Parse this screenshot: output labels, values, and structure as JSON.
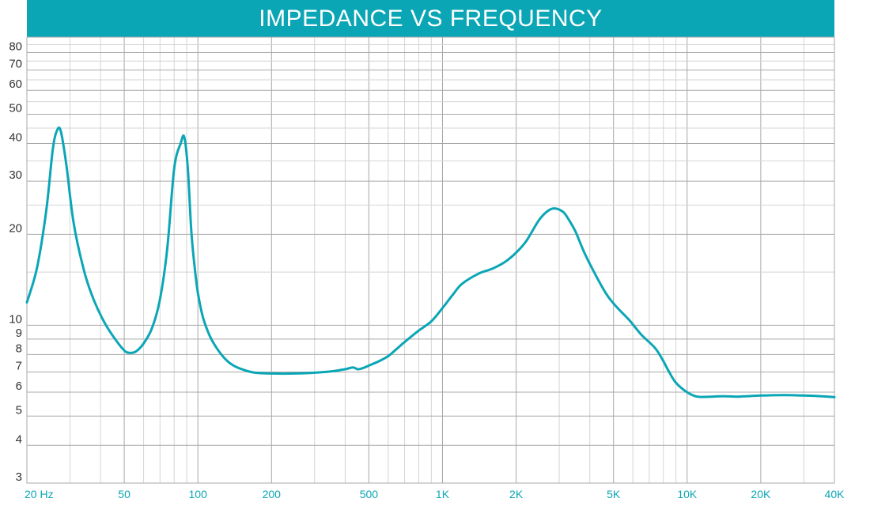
{
  "chart_data": {
    "type": "line",
    "title": "IMPEDANCE VS FREQUENCY",
    "xlabel": "",
    "ylabel": "",
    "x_scale": "log",
    "y_scale": "log",
    "xlim": [
      20,
      40000
    ],
    "ylim": [
      3,
      90
    ],
    "grid": true,
    "line_color": "#0ba6b6",
    "title_bar_color": "#0ba6b6",
    "x_ticks": [
      {
        "value": 20,
        "label": "20 Hz"
      },
      {
        "value": 50,
        "label": "50"
      },
      {
        "value": 100,
        "label": "100"
      },
      {
        "value": 200,
        "label": "200"
      },
      {
        "value": 500,
        "label": "500"
      },
      {
        "value": 1000,
        "label": "1K"
      },
      {
        "value": 2000,
        "label": "2K"
      },
      {
        "value": 5000,
        "label": "5K"
      },
      {
        "value": 10000,
        "label": "10K"
      },
      {
        "value": 20000,
        "label": "20K"
      },
      {
        "value": 40000,
        "label": "40K"
      }
    ],
    "y_ticks": [
      {
        "value": 3,
        "label": "3"
      },
      {
        "value": 4,
        "label": "4"
      },
      {
        "value": 5,
        "label": "5"
      },
      {
        "value": 6,
        "label": "6"
      },
      {
        "value": 7,
        "label": "7"
      },
      {
        "value": 8,
        "label": "8"
      },
      {
        "value": 9,
        "label": "9"
      },
      {
        "value": 10,
        "label": "10"
      },
      {
        "value": 20,
        "label": "20"
      },
      {
        "value": 30,
        "label": "30"
      },
      {
        "value": 40,
        "label": "40"
      },
      {
        "value": 50,
        "label": "50"
      },
      {
        "value": 60,
        "label": "60"
      },
      {
        "value": 70,
        "label": "70"
      },
      {
        "value": 80,
        "label": "80"
      }
    ],
    "series": [
      {
        "x": [
          20,
          22,
          24,
          25.5,
          26.5,
          27.5,
          29,
          31,
          34,
          37,
          41,
          45,
          50,
          53,
          56,
          60,
          65,
          70,
          75,
          80,
          85,
          88,
          91,
          94,
          97,
          100,
          105,
          112,
          120,
          130,
          140,
          155,
          170,
          200,
          250,
          300,
          350,
          400,
          430,
          450,
          470,
          500,
          550,
          600,
          650,
          700,
          800,
          900,
          1000,
          1100,
          1200,
          1400,
          1600,
          1800,
          2000,
          2200,
          2500,
          2800,
          3100,
          3300,
          3500,
          3800,
          4200,
          4700,
          5200,
          5800,
          6500,
          7400,
          8000,
          8400,
          9000,
          10000,
          11000,
          12500,
          14000,
          16000,
          17500,
          20000,
          25000,
          30000,
          35000,
          40000
        ],
        "y": [
          11.9,
          15.5,
          24,
          38,
          44,
          44,
          34,
          22,
          15.5,
          12.5,
          10.4,
          9.2,
          8.25,
          8.1,
          8.2,
          8.7,
          9.8,
          12.2,
          18,
          33,
          40,
          42,
          33,
          20.5,
          15.6,
          12.8,
          10.6,
          9.2,
          8.35,
          7.7,
          7.35,
          7.1,
          6.97,
          6.92,
          6.92,
          6.96,
          7.03,
          7.15,
          7.25,
          7.15,
          7.2,
          7.35,
          7.6,
          7.9,
          8.35,
          8.8,
          9.6,
          10.3,
          11.4,
          12.6,
          13.7,
          14.8,
          15.4,
          16.2,
          17.4,
          19,
          22.5,
          24.3,
          23.8,
          22.2,
          20.4,
          17.4,
          14.8,
          12.6,
          11.4,
          10.4,
          9.3,
          8.4,
          7.6,
          7.05,
          6.45,
          6.0,
          5.8,
          5.8,
          5.82,
          5.8,
          5.82,
          5.85,
          5.87,
          5.85,
          5.82,
          5.78
        ]
      }
    ]
  }
}
